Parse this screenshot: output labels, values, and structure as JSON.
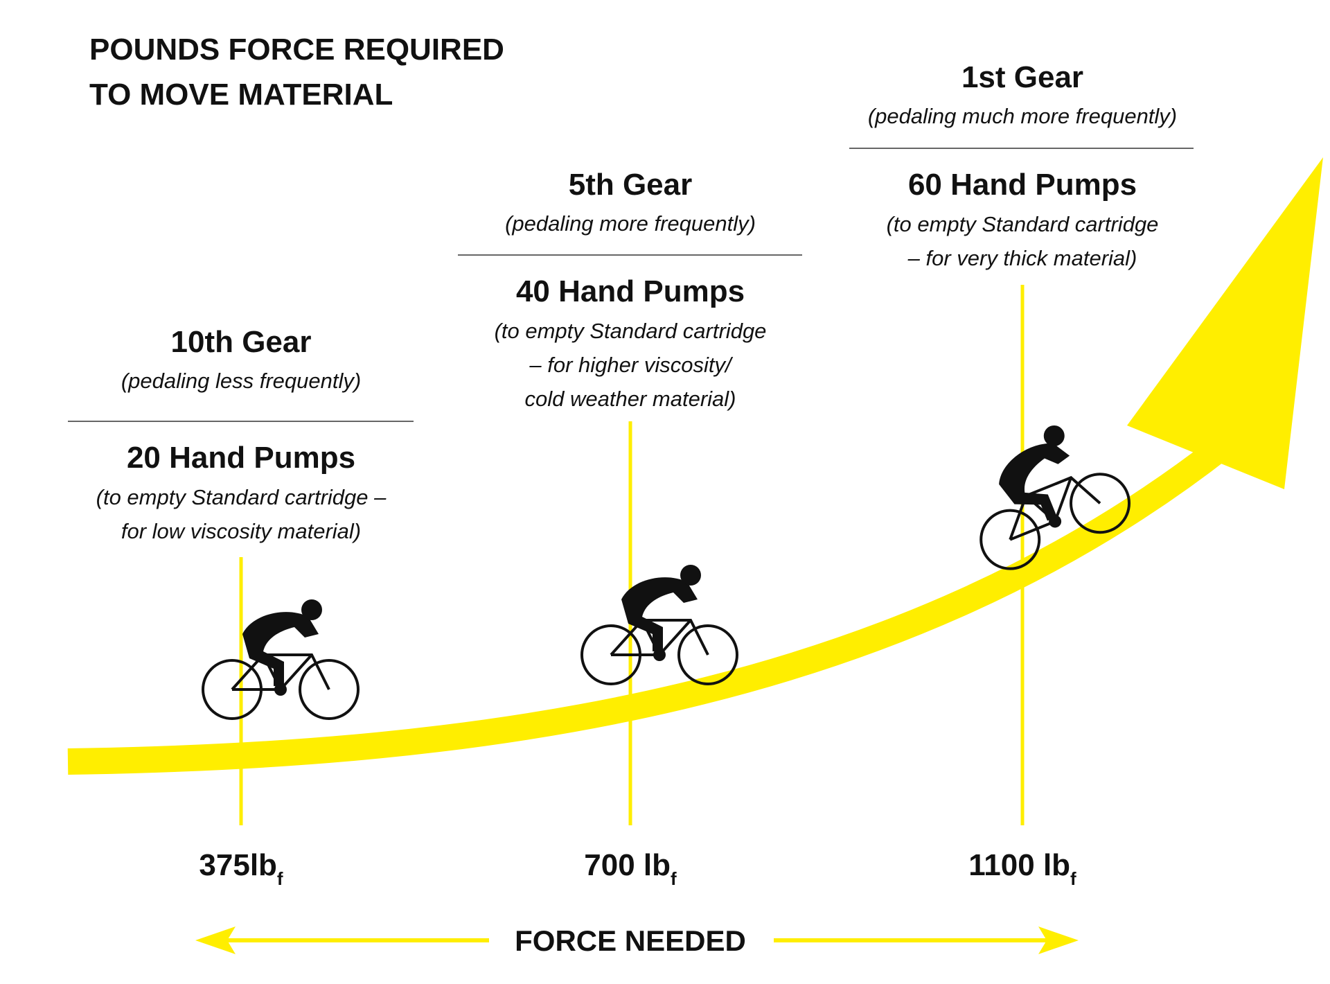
{
  "title": [
    "POUNDS FORCE REQUIRED",
    "TO MOVE MATERIAL"
  ],
  "columns": [
    {
      "gear": "10th Gear",
      "gear_note": "(pedaling less frequently)",
      "pumps": "20 Hand Pumps",
      "pumps_note": [
        "(to empty Standard cartridge –",
        "for low viscosity material)"
      ],
      "force": "375lb",
      "force_unit": "f"
    },
    {
      "gear": "5th Gear",
      "gear_note": "(pedaling more frequently)",
      "pumps": "40 Hand Pumps",
      "pumps_note": [
        "(to empty Standard cartridge",
        "– for higher viscosity/",
        "cold weather material)"
      ],
      "force": "700 lb",
      "force_unit": "f"
    },
    {
      "gear": "1st Gear",
      "gear_note": "(pedaling much more frequently)",
      "pumps": "60 Hand Pumps",
      "pumps_note": [
        "(to empty Standard cartridge",
        "– for very thick material)"
      ],
      "force": "1100 lb",
      "force_unit": "f"
    }
  ],
  "axis_label": "FORCE NEEDED"
}
